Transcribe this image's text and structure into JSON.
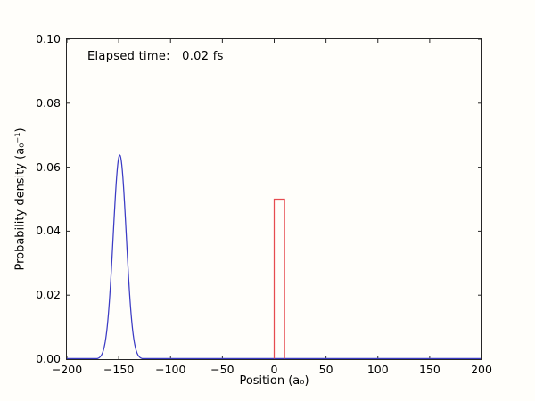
{
  "figure": {
    "background": "#fffefa",
    "axis_color": "#262626",
    "text_color": "#000000"
  },
  "chart_data": {
    "type": "line",
    "title": "",
    "annotation": "Elapsed time:   0.02 fs",
    "xlabel": "Position (a₀)",
    "ylabel": "Probability density (a₀⁻¹)",
    "xlim": [
      -200,
      200
    ],
    "ylim": [
      0,
      0.1
    ],
    "grid": false,
    "legend": "none",
    "x_ticks": {
      "values": [
        -200,
        -150,
        -100,
        -50,
        0,
        50,
        100,
        150,
        200
      ],
      "labels": [
        "−200",
        "−150",
        "−100",
        "−50",
        "0",
        "50",
        "100",
        "150",
        "200"
      ]
    },
    "y_ticks": {
      "values": [
        0.0,
        0.02,
        0.04,
        0.06,
        0.08,
        0.1
      ],
      "labels": [
        "0.00",
        "0.02",
        "0.04",
        "0.06",
        "0.08",
        "0.10"
      ]
    },
    "series": [
      {
        "name": "gaussian-wave-packet",
        "shape": "gaussian",
        "color": "#3b3bc4",
        "center": -149,
        "sigma": 6.3,
        "peak": 0.0638,
        "baseline": 0.0
      },
      {
        "name": "potential-barrier",
        "shape": "rect-outline",
        "color": "#e64b50",
        "x_start": 0,
        "x_end": 10,
        "height": 0.05
      }
    ]
  }
}
